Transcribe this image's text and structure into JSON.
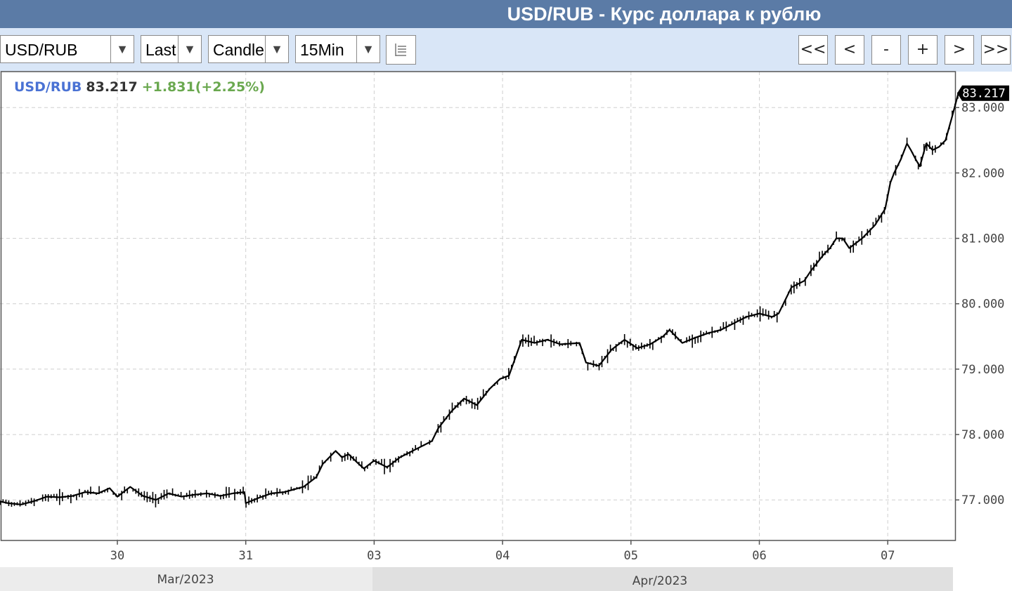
{
  "header": {
    "title": "USD/RUB - Курс доллара к рублю"
  },
  "toolbar": {
    "symbol": "USD/RUB",
    "field": "Last",
    "chart_type": "Candle",
    "interval": "15Min",
    "arrow": "▼",
    "nav_buttons": [
      "<<",
      "<",
      "-",
      "+",
      ">",
      ">>"
    ]
  },
  "legend": {
    "symbol": "USD/RUB",
    "last": "83.217",
    "change": "+1.831(+2.25%)"
  },
  "colors": {
    "title_bar": "#5b7ba6",
    "toolbar": "#d9e6f7",
    "legend_symbol": "#4a72d4",
    "legend_change": "#6aa84f",
    "price_tag": "#000000"
  },
  "chart_data": {
    "type": "line",
    "title": "",
    "xlabel": "",
    "ylabel": "",
    "x_ticks": [
      "30",
      "31",
      "03",
      "04",
      "05",
      "06",
      "07"
    ],
    "x_tick_sessions": [
      1,
      2,
      3,
      4,
      5,
      6,
      7
    ],
    "period_labels": [
      "Mar/2023",
      "Apr/2023"
    ],
    "y_ticks": [
      "77.000",
      "78.000",
      "79.000",
      "80.000",
      "81.000",
      "82.000",
      "83.000"
    ],
    "y_tick_values": [
      77,
      78,
      79,
      80,
      81,
      82,
      83
    ],
    "ylim": [
      76.38,
      83.55
    ],
    "last_price_label": "83.217",
    "grid": true,
    "series": [
      {
        "x": [
          0.0,
          0.08,
          0.15,
          0.25,
          0.35,
          0.45,
          0.55,
          0.65,
          0.75,
          0.85,
          0.94,
          1.0,
          1.1,
          1.2,
          1.3,
          1.4,
          1.5,
          1.6,
          1.7,
          1.8,
          1.9,
          1.99,
          2.0,
          2.1,
          2.2,
          2.3,
          2.45,
          2.55,
          2.6,
          2.7,
          2.75,
          2.8,
          2.88,
          2.92,
          3.0,
          3.05,
          3.1,
          3.2,
          3.25,
          3.35,
          3.45,
          3.5,
          3.6,
          3.7,
          3.8,
          3.9,
          3.98,
          4.05,
          4.15,
          4.25,
          4.35,
          4.45,
          4.6,
          4.65,
          4.75,
          4.85,
          4.95,
          5.05,
          5.15,
          5.25,
          5.3,
          5.4,
          5.5,
          5.6,
          5.7,
          5.8,
          5.9,
          6.0,
          6.1,
          6.15,
          6.2,
          6.25,
          6.35,
          6.4,
          6.5,
          6.55,
          6.6,
          6.65,
          6.7,
          6.8,
          6.9,
          6.98,
          7.02,
          7.05,
          7.1,
          7.15,
          7.18,
          7.22,
          7.25,
          7.3,
          7.35,
          7.4,
          7.45,
          7.5,
          7.55
        ],
        "y": [
          76.85,
          76.98,
          76.95,
          76.93,
          76.98,
          77.05,
          77.04,
          77.06,
          77.12,
          77.1,
          77.18,
          77.05,
          77.2,
          77.06,
          77.0,
          77.1,
          77.05,
          77.08,
          77.1,
          77.06,
          77.1,
          77.12,
          76.95,
          77.03,
          77.1,
          77.12,
          77.2,
          77.35,
          77.55,
          77.75,
          77.65,
          77.7,
          77.55,
          77.48,
          77.6,
          77.55,
          77.5,
          77.65,
          77.7,
          77.8,
          77.9,
          78.1,
          78.35,
          78.55,
          78.45,
          78.7,
          78.85,
          78.9,
          79.45,
          79.4,
          79.45,
          79.38,
          79.4,
          79.1,
          79.05,
          79.3,
          79.45,
          79.32,
          79.38,
          79.5,
          79.6,
          79.4,
          79.48,
          79.55,
          79.6,
          79.7,
          79.8,
          79.85,
          79.8,
          79.85,
          80.05,
          80.25,
          80.35,
          80.5,
          80.75,
          80.85,
          81.0,
          81.0,
          80.85,
          81.0,
          81.2,
          81.45,
          81.85,
          82.0,
          82.2,
          82.45,
          82.35,
          82.2,
          82.1,
          82.45,
          82.35,
          82.4,
          82.5,
          82.85,
          83.22
        ]
      }
    ]
  }
}
